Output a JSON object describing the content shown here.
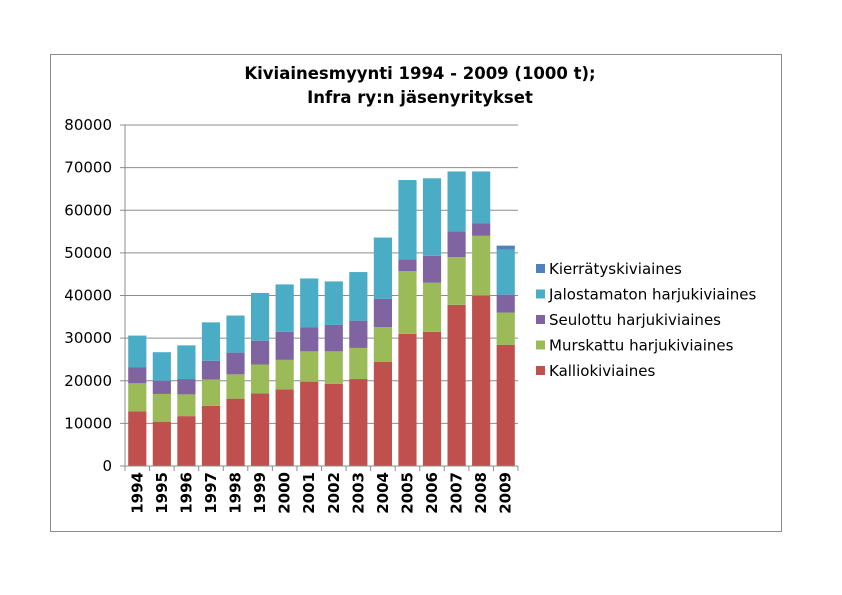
{
  "chart_data": {
    "type": "bar",
    "stacked": true,
    "title": "Kiviainesmyynti 1994 - 2009 (1000 t);",
    "subtitle": "Infra ry:n jäsenyritykset",
    "xlabel": "",
    "ylabel": "",
    "ylim": [
      0,
      80000
    ],
    "yticks": [
      0,
      10000,
      20000,
      30000,
      40000,
      50000,
      60000,
      70000,
      80000
    ],
    "grid": true,
    "legend_position": "right",
    "categories": [
      "1994",
      "1995",
      "1996",
      "1997",
      "1998",
      "1999",
      "2000",
      "2001",
      "2002",
      "2003",
      "2004",
      "2005",
      "2006",
      "2007",
      "2008",
      "2009"
    ],
    "series": [
      {
        "name": "Kalliokiviaines",
        "color": "#c0504d",
        "values": [
          12800,
          10400,
          11700,
          14100,
          15800,
          17000,
          18000,
          19800,
          19300,
          20400,
          24400,
          31000,
          31500,
          37800,
          40000,
          28400
        ]
      },
      {
        "name": "Murskattu harjukiviaines",
        "color": "#9bbb59",
        "values": [
          6600,
          6500,
          5100,
          6200,
          5700,
          6800,
          6900,
          7100,
          7600,
          7300,
          8200,
          14700,
          11500,
          11200,
          14000,
          7600
        ]
      },
      {
        "name": "Seulottu harjukiviaines",
        "color": "#8064a2",
        "values": [
          3800,
          3100,
          3600,
          4400,
          5100,
          5600,
          6600,
          5600,
          6200,
          6400,
          6600,
          2800,
          6300,
          6000,
          2900,
          4200
        ]
      },
      {
        "name": "Jalostamaton harjukiviaines",
        "color": "#4bacc6",
        "values": [
          7400,
          6700,
          7900,
          9000,
          8700,
          11200,
          11100,
          11500,
          10200,
          11400,
          14400,
          18600,
          18200,
          14100,
          12200,
          10600
        ]
      },
      {
        "name": "Kierrätyskiviaines",
        "color": "#4f81bd",
        "values": [
          0,
          0,
          0,
          0,
          0,
          0,
          0,
          0,
          0,
          0,
          0,
          0,
          0,
          0,
          0,
          900
        ]
      }
    ]
  }
}
